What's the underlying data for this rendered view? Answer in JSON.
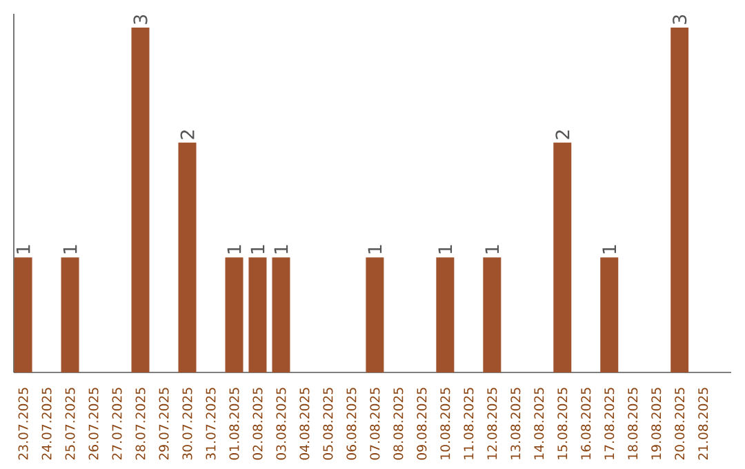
{
  "chart_data": {
    "type": "bar",
    "categories": [
      "23.07.2025",
      "24.07.2025",
      "25.07.2025",
      "26.07.2025",
      "27.07.2025",
      "28.07.2025",
      "29.07.2025",
      "30.07.2025",
      "31.07.2025",
      "01.08.2025",
      "02.08.2025",
      "03.08.2025",
      "04.08.2025",
      "05.08.2025",
      "06.08.2025",
      "07.08.2025",
      "08.08.2025",
      "09.08.2025",
      "10.08.2025",
      "11.08.2025",
      "12.08.2025",
      "13.08.2025",
      "14.08.2025",
      "15.08.2025",
      "16.08.2025",
      "17.08.2025",
      "18.08.2025",
      "19.08.2025",
      "20.08.2025",
      "21.08.2025"
    ],
    "values": [
      1,
      null,
      1,
      null,
      null,
      3,
      null,
      2,
      null,
      1,
      1,
      1,
      null,
      null,
      null,
      1,
      null,
      null,
      1,
      null,
      1,
      null,
      null,
      2,
      null,
      1,
      null,
      null,
      3,
      null
    ],
    "color": "#a0522d",
    "data_labels": true,
    "tick_labels": "x"
  }
}
